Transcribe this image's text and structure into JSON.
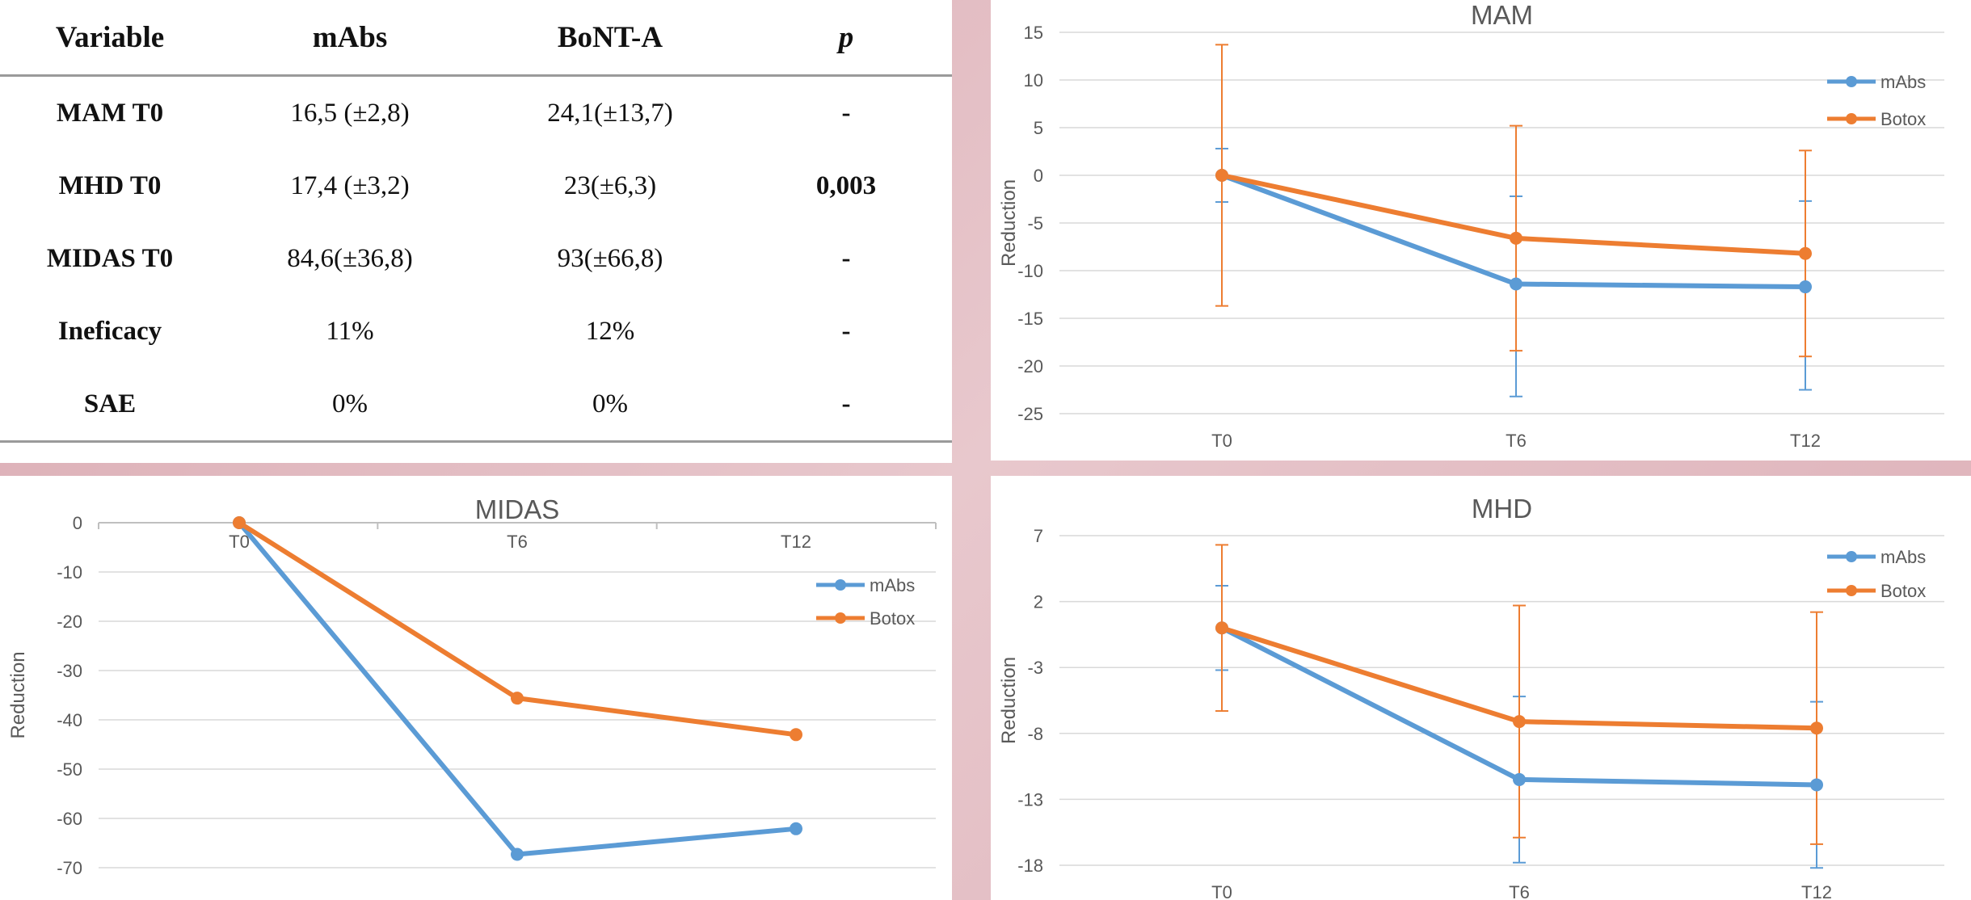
{
  "table": {
    "headers": [
      "Variable",
      "mAbs",
      "BoNT-A",
      "p"
    ],
    "rows": [
      {
        "variable": "MAM T0",
        "mabs": "16,5 (±2,8)",
        "bont": "24,1(±13,7)",
        "p": "-"
      },
      {
        "variable": "MHD T0",
        "mabs": "17,4 (±3,2)",
        "bont": "23(±6,3)",
        "p": "0,003"
      },
      {
        "variable": "MIDAS T0",
        "mabs": "84,6(±36,8)",
        "bont": "93(±66,8)",
        "p": "-"
      },
      {
        "variable": "Ineficacy",
        "mabs": "11%",
        "bont": "12%",
        "p": "-"
      },
      {
        "variable": "SAE",
        "mabs": "0%",
        "bont": "0%",
        "p": "-"
      }
    ]
  },
  "chart_data": [
    {
      "id": "mam",
      "type": "line",
      "title": "MAM",
      "xlabel": "",
      "ylabel": "Reduction",
      "categories": [
        "T0",
        "T6",
        "T12"
      ],
      "ylim": [
        -25,
        15
      ],
      "yticks": [
        15,
        10,
        5,
        0,
        -5,
        -10,
        -15,
        -20,
        -25
      ],
      "grid": true,
      "legend": "right",
      "series": [
        {
          "name": "mAbs",
          "color": "#5b9bd5",
          "values": [
            0,
            -11.4,
            -11.7
          ],
          "error_low": [
            2.8,
            11.8,
            10.8
          ],
          "error_high": [
            2.8,
            9.2,
            9.0
          ]
        },
        {
          "name": "Botox",
          "color": "#ed7d31",
          "values": [
            0,
            -6.6,
            -8.2
          ],
          "error_low": [
            13.7,
            11.8,
            10.8
          ],
          "error_high": [
            13.7,
            11.8,
            10.8
          ]
        }
      ]
    },
    {
      "id": "midas",
      "type": "line",
      "title": "MIDAS",
      "xlabel": "",
      "ylabel": "Reduction",
      "categories": [
        "T0",
        "T6",
        "T12"
      ],
      "ylim": [
        -70,
        0
      ],
      "yticks": [
        0,
        -10,
        -20,
        -30,
        -40,
        -50,
        -60,
        -70
      ],
      "grid": true,
      "legend": "right",
      "xaxis_at_top": true,
      "series": [
        {
          "name": "mAbs",
          "color": "#5b9bd5",
          "values": [
            0,
            -67.3,
            -62.1
          ]
        },
        {
          "name": "Botox",
          "color": "#ed7d31",
          "values": [
            0,
            -35.6,
            -43.0
          ]
        }
      ]
    },
    {
      "id": "mhd",
      "type": "line",
      "title": "MHD",
      "xlabel": "",
      "ylabel": "Reduction",
      "categories": [
        "T0",
        "T6",
        "T12"
      ],
      "ylim": [
        -18,
        7
      ],
      "yticks": [
        7,
        2,
        -3,
        -8,
        -13,
        -18
      ],
      "grid": true,
      "legend": "right",
      "series": [
        {
          "name": "mAbs",
          "color": "#5b9bd5",
          "values": [
            0,
            -11.5,
            -11.9
          ],
          "error_low": [
            3.2,
            6.3,
            6.3
          ],
          "error_high": [
            3.2,
            6.3,
            6.3
          ]
        },
        {
          "name": "Botox",
          "color": "#ed7d31",
          "values": [
            0,
            -7.1,
            -7.6
          ],
          "error_low": [
            6.3,
            8.8,
            8.8
          ],
          "error_high": [
            6.3,
            8.8,
            8.8
          ]
        }
      ]
    }
  ]
}
